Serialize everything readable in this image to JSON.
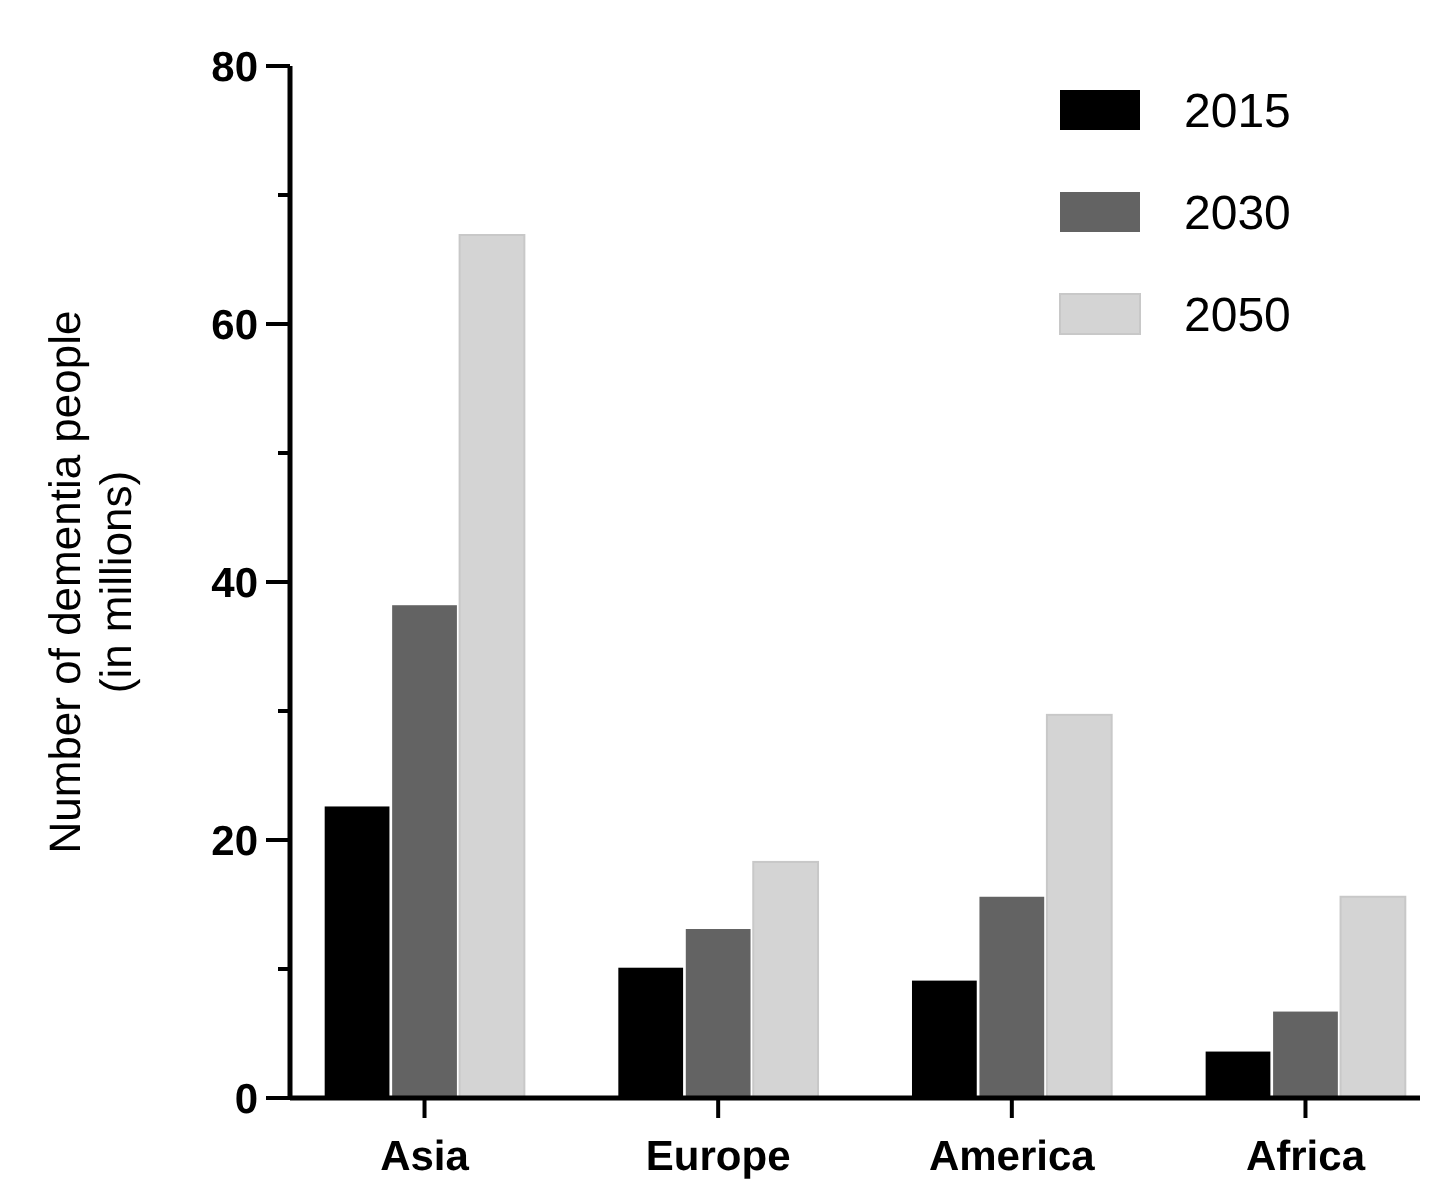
{
  "chart_data": {
    "type": "bar",
    "ylabel": "Number of dementia people\n(in millions)",
    "categories": [
      "Asia",
      "Europe",
      "America",
      "Africa"
    ],
    "series": [
      {
        "name": "2015",
        "color": "#000000",
        "values": [
          22.6,
          10.1,
          9.1,
          3.6
        ]
      },
      {
        "name": "2030",
        "color": "#636363",
        "values": [
          38.2,
          13.1,
          15.6,
          6.7
        ]
      },
      {
        "name": "2050",
        "color": "#d4d4d4",
        "values": [
          66.9,
          18.3,
          29.7,
          15.6
        ]
      }
    ],
    "ylim": [
      0,
      80
    ],
    "yticks": [
      0,
      {
        "value": 10,
        "label": null
      },
      20,
      {
        "value": 30,
        "label": null
      },
      40,
      {
        "value": 50,
        "label": null
      },
      60,
      {
        "value": 70,
        "label": null
      },
      80
    ],
    "grid": false,
    "legend": "top right"
  }
}
